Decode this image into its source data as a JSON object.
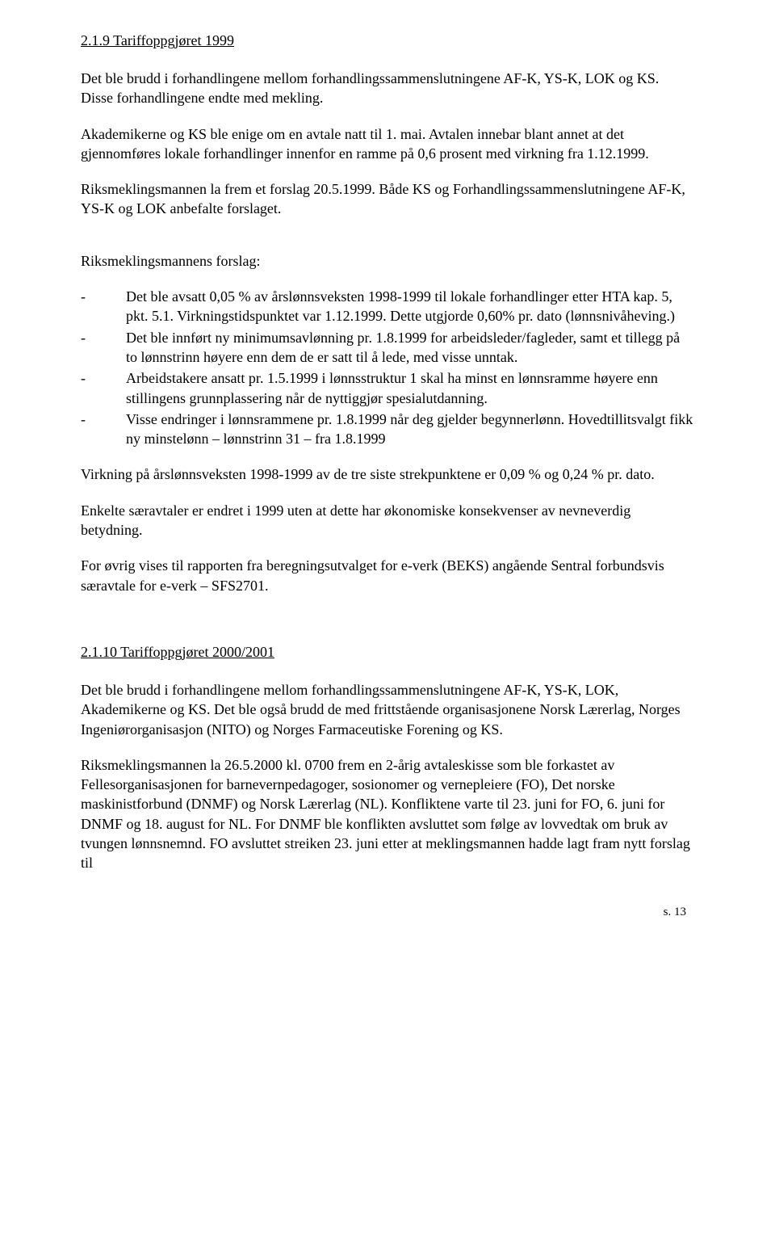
{
  "colors": {
    "background": "#ffffff",
    "text": "#000000"
  },
  "typography": {
    "family": "Times New Roman",
    "body_size_pt": 13,
    "line_height": 1.35
  },
  "section1": {
    "heading": "2.1.9 Tariffoppgjøret 1999",
    "p1": "Det ble brudd i forhandlingene mellom forhandlingssammenslutningene AF-K, YS-K, LOK og KS. Disse forhandlingene endte med mekling.",
    "p2": "Akademikerne og KS ble enige om en avtale natt til 1. mai. Avtalen innebar blant annet at det gjennomføres lokale forhandlinger innenfor en ramme på 0,6 prosent med virkning fra 1.12.1999.",
    "p3": "Riksmeklingsmannen la frem et forslag 20.5.1999. Både KS og Forhandlingssammenslutningene AF-K, YS-K og LOK anbefalte forslaget.",
    "p4": "Riksmeklingsmannens forslag:",
    "bullets": [
      "Det ble avsatt 0,05 % av årslønnsveksten 1998-1999 til lokale forhandlinger etter HTA kap. 5, pkt. 5.1. Virkningstidspunktet var 1.12.1999. Dette utgjorde 0,60% pr. dato (lønnsnivåheving.)",
      "Det ble innført ny minimumsavlønning pr. 1.8.1999 for arbeidsleder/fagleder, samt et tillegg på to lønnstrinn høyere enn dem de er satt til å lede, med visse unntak.",
      "Arbeidstakere ansatt pr. 1.5.1999 i lønnsstruktur 1 skal ha minst en lønnsramme høyere enn stillingens grunnplassering når de nyttiggjør spesialutdanning.",
      "Visse endringer i lønnsrammene pr. 1.8.1999 når deg gjelder begynnerlønn. Hovedtillitsvalgt fikk ny minstelønn – lønnstrinn 31 – fra 1.8.1999"
    ],
    "p5": "Virkning på årslønnsveksten 1998-1999 av de tre siste strekpunktene er 0,09 % og 0,24 % pr. dato.",
    "p6": "Enkelte særavtaler er endret i 1999 uten at dette har økonomiske konsekvenser av nevneverdig betydning.",
    "p7": "For øvrig vises til rapporten fra beregningsutvalget for e-verk (BEKS) angående Sentral forbundsvis særavtale for e-verk – SFS2701."
  },
  "section2": {
    "heading": "2.1.10 Tariffoppgjøret 2000/2001",
    "p1": "Det ble brudd i forhandlingene mellom forhandlingssammenslutningene AF-K, YS-K, LOK, Akademikerne og KS. Det ble også brudd de med frittstående organisasjonene Norsk Lærerlag, Norges Ingeniørorganisasjon (NITO) og Norges Farmaceutiske Forening og KS.",
    "p2": "Riksmeklingsmannen la 26.5.2000 kl. 0700 frem en 2-årig avtaleskisse som ble forkastet av Fellesorganisasjonen for barnevernpedagoger, sosionomer og vernepleiere (FO), Det norske maskinistforbund (DNMF) og Norsk Lærerlag (NL). Konfliktene varte til 23. juni for FO, 6. juni for DNMF og 18. august for NL. For DNMF ble konflikten avsluttet som følge av lovvedtak om bruk av tvungen lønnsnemnd. FO avsluttet streiken 23. juni etter at meklingsmannen hadde lagt fram nytt forslag til"
  },
  "page_number": "s. 13",
  "bullet_char": "-"
}
